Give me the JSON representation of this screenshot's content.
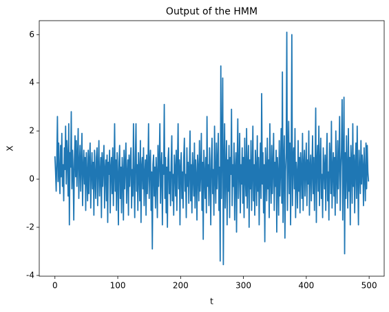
{
  "chart_data": {
    "type": "line",
    "title": "Output of the HMM",
    "xlabel": "t",
    "ylabel": "X",
    "color": "#1f77b4",
    "x": [
      0,
      1,
      2,
      3,
      4,
      5,
      6,
      7,
      8,
      9,
      10,
      11,
      12,
      13,
      14,
      15,
      16,
      17,
      18,
      19,
      20,
      21,
      22,
      23,
      24,
      25,
      26,
      27,
      28,
      29,
      30,
      31,
      32,
      33,
      34,
      35,
      36,
      37,
      38,
      39,
      40,
      41,
      42,
      43,
      44,
      45,
      46,
      47,
      48,
      49,
      50,
      51,
      52,
      53,
      54,
      55,
      56,
      57,
      58,
      59,
      60,
      61,
      62,
      63,
      64,
      65,
      66,
      67,
      68,
      69,
      70,
      71,
      72,
      73,
      74,
      75,
      76,
      77,
      78,
      79,
      80,
      81,
      82,
      83,
      84,
      85,
      86,
      87,
      88,
      89,
      90,
      91,
      92,
      93,
      94,
      95,
      96,
      97,
      98,
      99,
      100,
      101,
      102,
      103,
      104,
      105,
      106,
      107,
      108,
      109,
      110,
      111,
      112,
      113,
      114,
      115,
      116,
      117,
      118,
      119,
      120,
      121,
      122,
      123,
      124,
      125,
      126,
      127,
      128,
      129,
      130,
      131,
      132,
      133,
      134,
      135,
      136,
      137,
      138,
      139,
      140,
      141,
      142,
      143,
      144,
      145,
      146,
      147,
      148,
      149,
      150,
      151,
      152,
      153,
      154,
      155,
      156,
      157,
      158,
      159,
      160,
      161,
      162,
      163,
      164,
      165,
      166,
      167,
      168,
      169,
      170,
      171,
      172,
      173,
      174,
      175,
      176,
      177,
      178,
      179,
      180,
      181,
      182,
      183,
      184,
      185,
      186,
      187,
      188,
      189,
      190,
      191,
      192,
      193,
      194,
      195,
      196,
      197,
      198,
      199,
      200,
      201,
      202,
      203,
      204,
      205,
      206,
      207,
      208,
      209,
      210,
      211,
      212,
      213,
      214,
      215,
      216,
      217,
      218,
      219,
      220,
      221,
      222,
      223,
      224,
      225,
      226,
      227,
      228,
      229,
      230,
      231,
      232,
      233,
      234,
      235,
      236,
      237,
      238,
      239,
      240,
      241,
      242,
      243,
      244,
      245,
      246,
      247,
      248,
      249,
      250,
      251,
      252,
      253,
      254,
      255,
      256,
      257,
      258,
      259,
      260,
      261,
      262,
      263,
      264,
      265,
      266,
      267,
      268,
      269,
      270,
      271,
      272,
      273,
      274,
      275,
      276,
      277,
      278,
      279,
      280,
      281,
      282,
      283,
      284,
      285,
      286,
      287,
      288,
      289,
      290,
      291,
      292,
      293,
      294,
      295,
      296,
      297,
      298,
      299,
      300,
      301,
      302,
      303,
      304,
      305,
      306,
      307,
      308,
      309,
      310,
      311,
      312,
      313,
      314,
      315,
      316,
      317,
      318,
      319,
      320,
      321,
      322,
      323,
      324,
      325,
      326,
      327,
      328,
      329,
      330,
      331,
      332,
      333,
      334,
      335,
      336,
      337,
      338,
      339,
      340,
      341,
      342,
      343,
      344,
      345,
      346,
      347,
      348,
      349,
      350,
      351,
      352,
      353,
      354,
      355,
      356,
      357,
      358,
      359,
      360,
      361,
      362,
      363,
      364,
      365,
      366,
      367,
      368,
      369,
      370,
      371,
      372,
      373,
      374,
      375,
      376,
      377,
      378,
      379,
      380,
      381,
      382,
      383,
      384,
      385,
      386,
      387,
      388,
      389,
      390,
      391,
      392,
      393,
      394,
      395,
      396,
      397,
      398,
      399,
      400,
      401,
      402,
      403,
      404,
      405,
      406,
      407,
      408,
      409,
      410,
      411,
      412,
      413,
      414,
      415,
      416,
      417,
      418,
      419,
      420,
      421,
      422,
      423,
      424,
      425,
      426,
      427,
      428,
      429,
      430,
      431,
      432,
      433,
      434,
      435,
      436,
      437,
      438,
      439,
      440,
      441,
      442,
      443,
      444,
      445,
      446,
      447,
      448,
      449,
      450,
      451,
      452,
      453,
      454,
      455,
      456,
      457,
      458,
      459,
      460,
      461,
      462,
      463,
      464,
      465,
      466,
      467,
      468,
      469,
      470,
      471,
      472,
      473,
      474,
      475,
      476,
      477,
      478,
      479,
      480,
      481,
      482,
      483,
      484,
      485,
      486,
      487,
      488,
      489,
      490,
      491,
      492,
      493,
      494,
      495,
      496,
      497,
      498,
      499
    ],
    "values": [
      0.95,
      0.3,
      -0.5,
      0.8,
      2.6,
      -0.1,
      1.5,
      0.2,
      -0.6,
      1.4,
      0.1,
      1.9,
      -0.3,
      0.6,
      -0.9,
      1.3,
      0.4,
      2.2,
      -0.2,
      1.6,
      0.9,
      -0.7,
      2.3,
      -1.9,
      1.1,
      0.5,
      2.8,
      -0.4,
      1.2,
      0.3,
      -1.7,
      0.8,
      1.8,
      0.1,
      1.6,
      -0.3,
      0.9,
      2.1,
      -0.8,
      0.6,
      1.4,
      -0.5,
      0.7,
      1.9,
      -1.1,
      0.4,
      1.2,
      -0.2,
      0.9,
      -1.3,
      1.1,
      0.2,
      -0.9,
      1.2,
      -0.6,
      0.8,
      1.5,
      -1.2,
      0.3,
      1.1,
      -0.4,
      0.7,
      -1.5,
      1.2,
      0.1,
      -0.8,
      0.9,
      1.3,
      -1.1,
      0.5,
      1.6,
      -0.7,
      0.2,
      0.9,
      -1.6,
      1.1,
      -0.3,
      0.6,
      1.4,
      -1.2,
      0.4,
      0.8,
      -0.9,
      1.0,
      -1.8,
      0.7,
      0.2,
      1.2,
      -1.4,
      0.5,
      0.9,
      -0.6,
      1.3,
      -1.1,
      0.3,
      2.3,
      -0.5,
      0.8,
      -1.3,
      1.1,
      0.2,
      -1.9,
      0.7,
      1.4,
      -0.8,
      0.5,
      -1.4,
      0.9,
      0.3,
      -1.7,
      1.2,
      -0.4,
      0.6,
      1.5,
      -1.0,
      0.2,
      0.8,
      -1.5,
      1.0,
      -0.3,
      0.7,
      1.3,
      -1.2,
      0.4,
      -0.7,
      2.3,
      0.1,
      -1.6,
      0.9,
      2.3,
      -0.5,
      0.6,
      -1.3,
      1.1,
      0.3,
      -0.9,
      1.6,
      -1.8,
      0.5,
      0.9,
      -0.4,
      1.3,
      -1.1,
      0.2,
      0.8,
      -1.5,
      1.0,
      -0.6,
      0.4,
      2.3,
      -0.8,
      0.7,
      1.2,
      -1.3,
      0.3,
      -2.9,
      0.6,
      1.0,
      -0.7,
      0.5,
      -1.2,
      0.9,
      0.2,
      -1.6,
      1.4,
      -0.3,
      0.7,
      2.3,
      -1.0,
      0.4,
      1.1,
      -1.9,
      0.6,
      0.2,
      3.1,
      -0.8,
      0.9,
      -1.4,
      0.5,
      -2.0,
      0.8,
      1.3,
      -0.6,
      0.3,
      -1.1,
      0.7,
      1.8,
      -0.9,
      0.2,
      -1.5,
      1.0,
      0.4,
      -0.7,
      1.2,
      -1.3,
      0.6,
      2.3,
      -0.4,
      0.8,
      -1.9,
      0.5,
      1.1,
      -0.8,
      0.3,
      -1.2,
      0.9,
      1.7,
      -0.5,
      0.2,
      -1.6,
      1.3,
      -0.3,
      0.7,
      -1.0,
      0.4,
      2.0,
      -0.9,
      0.6,
      -1.4,
      1.1,
      0.2,
      -0.7,
      1.5,
      -1.2,
      0.8,
      0.1,
      -1.7,
      1.0,
      0.4,
      -0.9,
      1.6,
      -0.5,
      0.3,
      1.9,
      -1.3,
      0.7,
      -2.5,
      1.2,
      0.2,
      -0.8,
      0.9,
      -1.4,
      2.6,
      -0.3,
      0.6,
      -1.1,
      1.3,
      0.2,
      -1.9,
      0.8,
      1.7,
      -0.6,
      0.4,
      -1.5,
      2.2,
      0.1,
      -1.0,
      1.5,
      -0.4,
      0.7,
      1.9,
      -1.3,
      0.5,
      -3.4,
      4.7,
      -0.8,
      1.4,
      4.2,
      -3.55,
      0.6,
      2.3,
      -1.2,
      0.3,
      1.6,
      -1.9,
      0.8,
      -0.5,
      1.4,
      -1.6,
      0.9,
      0.2,
      2.9,
      -1.1,
      0.6,
      -0.3,
      1.5,
      -1.7,
      0.4,
      1.1,
      -2.2,
      0.7,
      2.5,
      -0.8,
      0.3,
      1.9,
      -1.4,
      0.6,
      -0.2,
      1.3,
      -1.0,
      0.9,
      -1.6,
      1.7,
      0.1,
      -0.7,
      2.1,
      -1.2,
      0.5,
      1.4,
      -2.0,
      0.8,
      -0.4,
      1.6,
      -1.3,
      0.3,
      2.2,
      -0.9,
      0.6,
      -1.5,
      1.2,
      0.4,
      -1.1,
      1.8,
      -0.5,
      0.9,
      -1.9,
      0.2,
      1.5,
      -0.8,
      3.55,
      -0.2,
      1.1,
      -1.4,
      0.6,
      -2.6,
      1.3,
      0.3,
      -0.9,
      1.7,
      -0.4,
      0.8,
      -1.6,
      2.3,
      0.1,
      -1.0,
      1.4,
      -0.6,
      0.5,
      1.9,
      -1.3,
      0.7,
      -0.3,
      1.2,
      -2.2,
      0.9,
      0.2,
      -1.5,
      1.6,
      -0.7,
      0.4,
      2.1,
      -1.0,
      4.45,
      -1.8,
      0.6,
      1.8,
      -2.45,
      0.3,
      1.1,
      6.1,
      -1.3,
      0.9,
      2.4,
      -0.6,
      1.5,
      -1.9,
      0.5,
      6.0,
      -1.1,
      0.8,
      1.3,
      -0.4,
      2.1,
      -1.6,
      0.7,
      0.2,
      -1.2,
      1.6,
      -0.5,
      0.9,
      -1.4,
      1.1,
      0.3,
      -0.8,
      1.9,
      -1.3,
      0.6,
      1.2,
      -0.7,
      0.4,
      1.5,
      -1.1,
      0.8,
      -0.2,
      2.0,
      -1.5,
      0.5,
      1.0,
      -0.9,
      0.3,
      1.8,
      -0.6,
      0.9,
      -1.3,
      0.4,
      2.95,
      -1.8,
      0.7,
      1.4,
      -0.5,
      2.2,
      -1.1,
      0.6,
      1.7,
      -0.8,
      0.2,
      -1.6,
      1.3,
      0.5,
      -0.4,
      1.0,
      -1.3,
      0.7,
      1.9,
      -0.9,
      0.3,
      -1.7,
      1.5,
      0.8,
      -0.6,
      2.4,
      -1.2,
      0.4,
      1.1,
      -0.7,
      0.9,
      -1.5,
      2.0,
      0.2,
      -1.0,
      1.6,
      -0.4,
      0.8,
      2.6,
      -1.3,
      0.5,
      1.2,
      3.3,
      -1.7,
      0.7,
      3.4,
      -3.1,
      1.1,
      -0.8,
      1.8,
      0.3,
      -1.2,
      2.1,
      -0.5,
      0.9,
      -1.9,
      1.4,
      0.6,
      -1.0,
      2.3,
      -0.3,
      1.0,
      -1.4,
      0.7,
      1.5,
      -0.8,
      2.2,
      0.1,
      -1.9,
      1.2,
      0.4,
      -0.6,
      1.6,
      -0.2,
      1.0,
      0.5,
      -1.1,
      1.3,
      0.2,
      -0.9,
      1.5,
      -0.4,
      1.4,
      0.3,
      -0.1
    ],
    "xlim": [
      -24.95,
      523.95
    ],
    "xticks": [
      0,
      100,
      200,
      300,
      400,
      500
    ],
    "ylim": [
      -4.03,
      6.58
    ],
    "yticks": [
      -4,
      -2,
      0,
      2,
      4,
      6
    ],
    "grid": false
  }
}
